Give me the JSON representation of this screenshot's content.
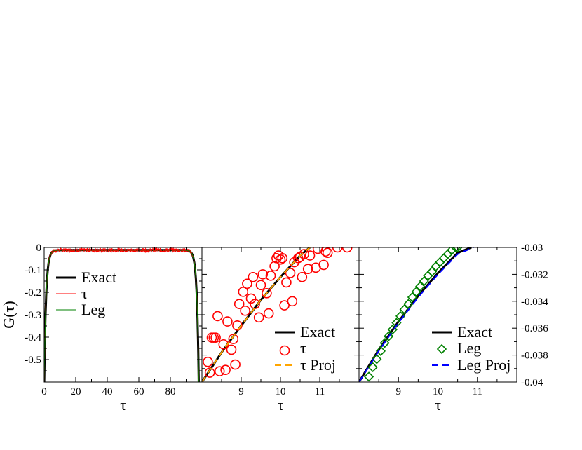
{
  "colors": {
    "exact": "#000000",
    "tau": "#ff0000",
    "leg": "#008000",
    "tau_proj": "#ffa500",
    "leg_proj": "#0000ff"
  },
  "chart_data": [
    {
      "type": "line",
      "ylabel": "G(τ)",
      "xlabel": "τ",
      "xlim": [
        0,
        100
      ],
      "ylim": [
        -0.6,
        0
      ],
      "xticks": [
        0,
        20,
        40,
        60,
        80
      ],
      "yticks": [
        0,
        -0.1,
        -0.2,
        -0.3,
        -0.4,
        -0.5
      ],
      "xtick_labels": [
        "0",
        "20",
        "40",
        "60",
        "80"
      ],
      "ytick_labels": [
        "0",
        "-0.1",
        "-0.2",
        "-0.3",
        "-0.4",
        "-0.5"
      ],
      "beta": 98,
      "legend_position": "center-left",
      "series": [
        {
          "name": "Exact",
          "style": "solid-thick",
          "color": "#000000"
        },
        {
          "name": "τ",
          "style": "noisy-thin",
          "color": "#ff0000"
        },
        {
          "name": "Leg",
          "style": "solid-thin",
          "color": "#008000"
        }
      ]
    },
    {
      "type": "scatter",
      "xlabel": "τ",
      "xlim": [
        8,
        12
      ],
      "ylim": [
        -0.04,
        -0.03
      ],
      "xticks": [
        9,
        10,
        11
      ],
      "xtick_labels": [
        "9",
        "10",
        "11"
      ],
      "legend_position": "bottom-right",
      "series": [
        {
          "name": "Exact",
          "style": "line",
          "color": "#000000",
          "x": [
            8.0,
            8.5,
            9.0,
            9.5,
            10.0,
            10.5,
            10.75
          ],
          "y": [
            -0.04,
            -0.0378,
            -0.0358,
            -0.0339,
            -0.0322,
            -0.0306,
            -0.03
          ]
        },
        {
          "name": "τ",
          "style": "open-circle",
          "color": "#ff0000",
          "x": [
            8.15,
            8.3,
            8.45,
            8.55,
            8.75,
            8.9,
            9.1,
            9.3,
            9.5,
            9.7,
            9.85,
            10.0,
            10.15,
            10.35,
            10.55,
            10.75,
            10.95,
            11.15,
            11.45,
            11.7,
            8.2,
            8.4,
            8.6,
            8.85,
            9.05,
            9.25,
            9.45,
            9.65,
            9.9,
            10.1,
            10.3,
            10.5,
            10.7,
            10.9,
            11.1,
            8.35,
            8.65,
            8.95,
            9.15,
            9.55,
            9.75,
            10.05,
            10.25,
            10.45,
            8.25,
            8.8,
            9.35,
            9.95,
            10.6,
            11.2
          ],
          "y": [
            -0.0385,
            -0.0367,
            -0.0392,
            -0.0372,
            -0.0376,
            -0.0358,
            -0.0347,
            -0.0322,
            -0.0328,
            -0.0349,
            -0.0314,
            -0.0309,
            -0.0326,
            -0.0311,
            -0.0322,
            -0.0306,
            -0.0301,
            -0.0303,
            -0.03,
            -0.03,
            -0.0393,
            -0.0351,
            -0.0391,
            -0.0387,
            -0.0333,
            -0.0338,
            -0.0352,
            -0.0334,
            -0.0308,
            -0.0343,
            -0.034,
            -0.0307,
            -0.0316,
            -0.0315,
            -0.0313,
            -0.0367,
            -0.0355,
            -0.0342,
            -0.0327,
            -0.032,
            -0.0321,
            -0.0308,
            -0.0319,
            -0.0308,
            -0.0367,
            -0.0368,
            -0.0342,
            -0.0306,
            -0.0305,
            -0.0304
          ]
        },
        {
          "name": "τ Proj",
          "style": "dashed",
          "color": "#ffa500",
          "x": [
            8.0,
            8.5,
            9.0,
            9.5,
            10.0,
            10.5,
            10.75
          ],
          "y": [
            -0.04,
            -0.0378,
            -0.0358,
            -0.0339,
            -0.0322,
            -0.0306,
            -0.03
          ]
        }
      ]
    },
    {
      "type": "scatter",
      "xlabel": "τ",
      "xlim": [
        8,
        12
      ],
      "ylim": [
        -0.04,
        -0.03
      ],
      "xticks": [
        9,
        10,
        11
      ],
      "xtick_labels": [
        "9",
        "10",
        "11"
      ],
      "yticks": [
        -0.03,
        -0.032,
        -0.034,
        -0.036,
        -0.038,
        -0.04
      ],
      "ytick_labels": [
        "-0.03",
        "-0.032",
        "-0.034",
        "-0.036",
        "-0.038",
        "-0.04"
      ],
      "y_axis_side": "right",
      "legend_position": "bottom-right",
      "series": [
        {
          "name": "Exact",
          "style": "line",
          "color": "#000000",
          "x": [
            8.0,
            8.5,
            9.0,
            9.5,
            10.0,
            10.5,
            10.85
          ],
          "y": [
            -0.04,
            -0.0376,
            -0.0355,
            -0.0336,
            -0.0319,
            -0.0304,
            -0.03
          ]
        },
        {
          "name": "Leg",
          "style": "open-diamond",
          "color": "#008000",
          "x": [
            8.25,
            8.35,
            8.45,
            8.55,
            8.65,
            8.75,
            8.85,
            8.95,
            9.05,
            9.15,
            9.25,
            9.35,
            9.45,
            9.55,
            9.65,
            9.75,
            9.85,
            9.95,
            10.05,
            10.15,
            10.25,
            10.35,
            10.45,
            10.5
          ],
          "y": [
            -0.0396,
            -0.0389,
            -0.0383,
            -0.0377,
            -0.0371,
            -0.0366,
            -0.0361,
            -0.0356,
            -0.0351,
            -0.0346,
            -0.0342,
            -0.0337,
            -0.0333,
            -0.0329,
            -0.0325,
            -0.0321,
            -0.0318,
            -0.0314,
            -0.0311,
            -0.0308,
            -0.0305,
            -0.0302,
            -0.03,
            -0.03
          ]
        },
        {
          "name": "Leg Proj",
          "style": "dashed",
          "color": "#0000ff",
          "x": [
            8.0,
            8.5,
            9.0,
            9.5,
            10.0,
            10.5,
            10.9
          ],
          "y": [
            -0.04,
            -0.0377,
            -0.0356,
            -0.0337,
            -0.032,
            -0.0305,
            -0.03
          ]
        }
      ]
    }
  ]
}
